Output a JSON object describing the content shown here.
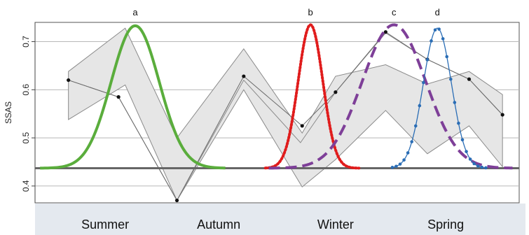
{
  "chart_data": {
    "type": "line",
    "ylabel": "SSAS",
    "ylim": [
      0.365,
      0.74
    ],
    "yticks": [
      0.4,
      0.5,
      0.6,
      0.7
    ],
    "ytick_labels": [
      "0.4",
      "0.5",
      "0.6",
      "0.7"
    ],
    "seasons": [
      "Summer",
      "Autumn",
      "Winter",
      "Spring"
    ],
    "x": [
      1,
      2,
      3,
      4,
      5,
      6,
      7,
      8,
      9,
      10,
      11,
      12,
      13,
      14
    ],
    "mean_series": [
      0.62,
      0.585,
      0.37,
      0.628,
      0.525,
      0.595,
      0.72,
      0.663,
      0.622,
      0.548
    ],
    "mean_x": [
      1,
      2.5,
      4.25,
      6.25,
      8,
      9,
      10.5,
      11.75,
      13,
      14
    ],
    "band_upper": [
      0.638,
      0.728,
      0.5,
      0.685,
      0.51,
      0.628,
      0.652,
      0.612,
      0.638,
      0.59
    ],
    "band_lower": [
      0.538,
      0.61,
      0.37,
      0.6,
      0.398,
      0.455,
      0.557,
      0.467,
      0.525,
      0.44
    ],
    "band_x": [
      1,
      2.7,
      4.25,
      6.25,
      8,
      9,
      10.5,
      11.75,
      13,
      14
    ],
    "inner_line": [
      0.62,
      0.585,
      0.37,
      0.62,
      0.49,
      0.595,
      0.718,
      0.663,
      0.622,
      0.548
    ],
    "inner_x": [
      1,
      2.5,
      4.25,
      6.25,
      7.95,
      9,
      10.5,
      11.75,
      13,
      14
    ],
    "baseline": 0.437,
    "curves": [
      {
        "label": "a",
        "color": "#5aad3c",
        "style": "solid",
        "center": 3.0,
        "spread": 0.72,
        "peak": 0.733,
        "x_from": 0.15,
        "x_to": 5.7
      },
      {
        "label": "b",
        "color": "#e01c1c",
        "style": "dotted",
        "center": 8.25,
        "spread": 0.37,
        "peak": 0.735,
        "x_from": 6.9,
        "x_to": 9.7
      },
      {
        "label": "c",
        "color": "#7e3f98",
        "style": "dashed",
        "center": 10.75,
        "spread": 0.95,
        "peak": 0.735,
        "x_from": 7.0,
        "x_to": 14.3
      },
      {
        "label": "d",
        "color": "#2a6db5",
        "style": "dots-line",
        "center": 12.05,
        "spread": 0.42,
        "peak": 0.728,
        "x_from": 10.7,
        "x_to": 13.5
      }
    ]
  }
}
